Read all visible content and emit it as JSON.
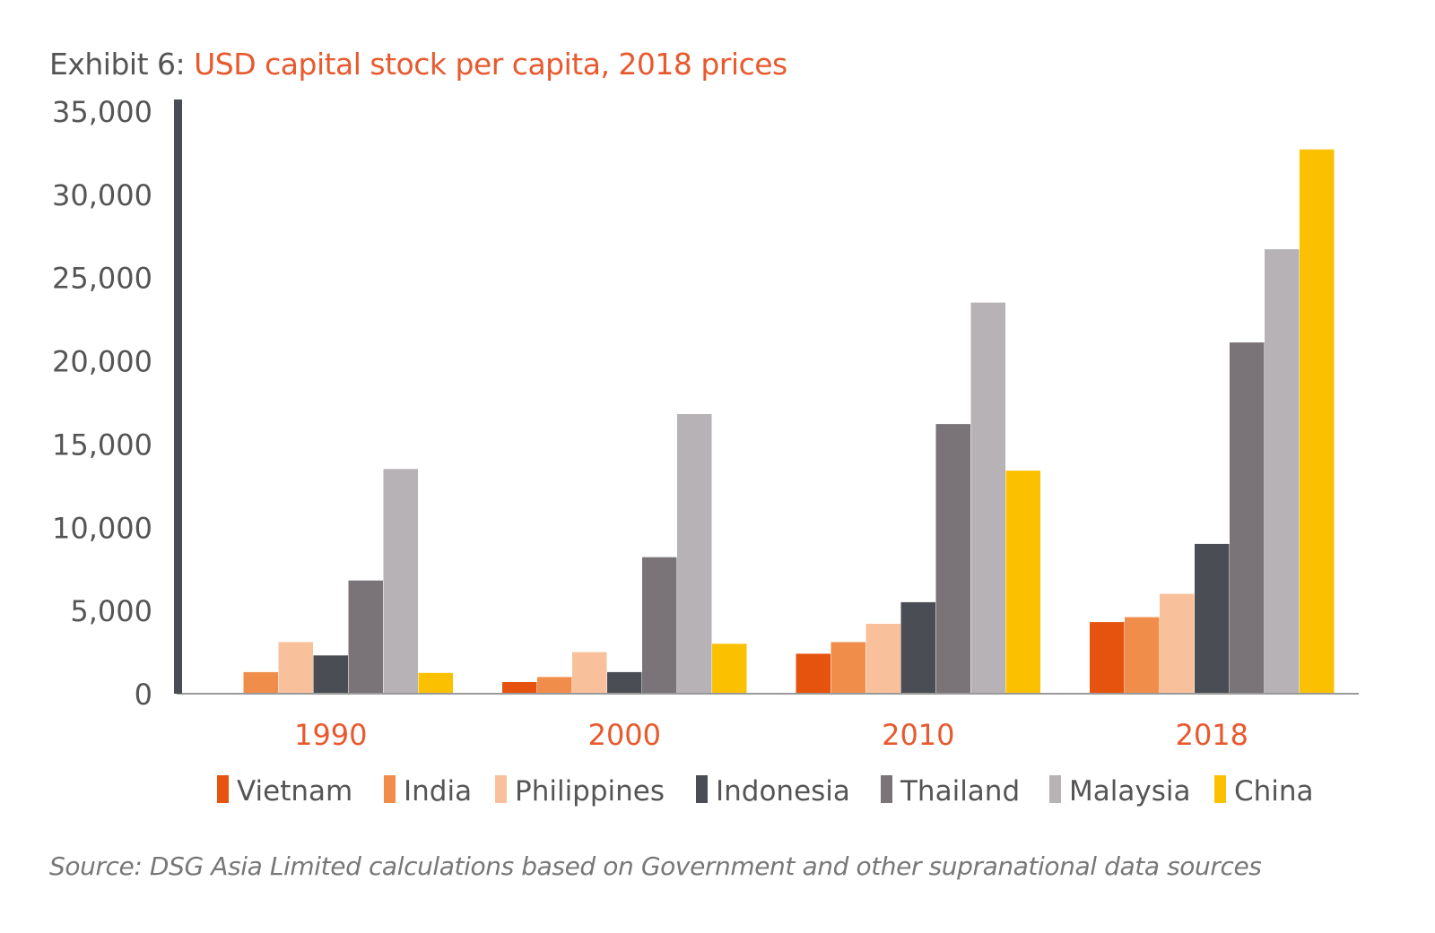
{
  "title": {
    "prefix": "Exhibit 6:",
    "text": "USD capital stock per capita, 2018 prices"
  },
  "source": "Source: DSG Asia Limited calculations based on Government and other supranational data sources",
  "colors": {
    "title_accent": "#e8592e",
    "category_labels": "#e8592e",
    "axis": "#4a4e54",
    "text": "#555555"
  },
  "chart_data": {
    "type": "bar",
    "title": "USD capital stock per capita, 2018 prices",
    "xlabel": "",
    "ylabel": "",
    "ylim": [
      0,
      35000
    ],
    "yticks": [
      0,
      5000,
      10000,
      15000,
      20000,
      25000,
      30000,
      35000
    ],
    "ytick_labels": [
      "0",
      "5,000",
      "10,000",
      "15,000",
      "20,000",
      "25,000",
      "30,000",
      "35,000"
    ],
    "categories": [
      "1990",
      "2000",
      "2010",
      "2018"
    ],
    "grid": false,
    "legend_position": "bottom",
    "series": [
      {
        "name": "Vietnam",
        "color": "#e5530f",
        "values": [
          50,
          700,
          2400,
          4300
        ]
      },
      {
        "name": "India",
        "color": "#f08d4a",
        "values": [
          1300,
          1000,
          3100,
          4600
        ]
      },
      {
        "name": "Philippines",
        "color": "#f9c19b",
        "values": [
          3100,
          2500,
          4200,
          6000
        ]
      },
      {
        "name": "Indonesia",
        "color": "#4a4e54",
        "values": [
          2300,
          1300,
          5500,
          9000
        ]
      },
      {
        "name": "Thailand",
        "color": "#7a7478",
        "values": [
          6800,
          8200,
          16200,
          21100
        ]
      },
      {
        "name": "Malaysia",
        "color": "#b6b2b6",
        "values": [
          13500,
          16800,
          23500,
          26700
        ]
      },
      {
        "name": "China",
        "color": "#fbc100",
        "values": [
          1250,
          3000,
          13400,
          32700
        ]
      }
    ]
  }
}
